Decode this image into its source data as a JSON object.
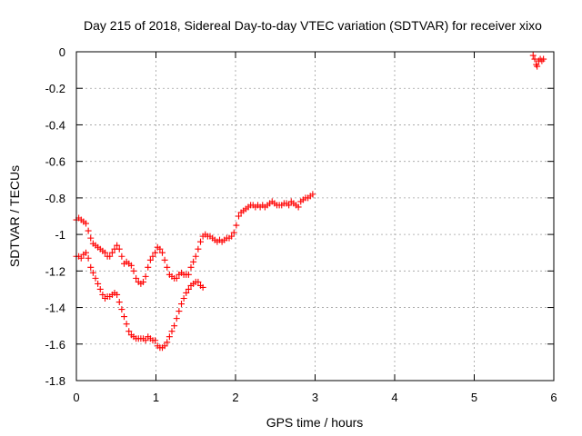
{
  "chart_data": {
    "type": "scatter",
    "title": "Day 215 of 2018, Sidereal Day-to-day VTEC variation (SDTVAR) for receiver xixo",
    "xlabel": "GPS time / hours",
    "ylabel": "SDTVAR / TECUs",
    "xlim": [
      0,
      6
    ],
    "ylim": [
      -1.8,
      0
    ],
    "xticks": [
      "0",
      "1",
      "2",
      "3",
      "4",
      "5",
      "6"
    ],
    "yticks": [
      "0",
      "-0.2",
      "-0.4",
      "-0.6",
      "-0.8",
      "-1",
      "-1.2",
      "-1.4",
      "-1.6",
      "-1.8"
    ],
    "grid": true,
    "marker": "+",
    "color": "#ff0000",
    "series": [
      {
        "values": [
          [
            0.0,
            -0.92
          ],
          [
            0.03,
            -0.91
          ],
          [
            0.06,
            -0.92
          ],
          [
            0.09,
            -0.93
          ],
          [
            0.12,
            -0.94
          ],
          [
            0.15,
            -0.98
          ],
          [
            0.18,
            -1.02
          ],
          [
            0.21,
            -1.05
          ],
          [
            0.24,
            -1.06
          ],
          [
            0.27,
            -1.07
          ],
          [
            0.3,
            -1.08
          ],
          [
            0.33,
            -1.09
          ],
          [
            0.36,
            -1.1
          ],
          [
            0.39,
            -1.12
          ],
          [
            0.42,
            -1.12
          ],
          [
            0.45,
            -1.1
          ],
          [
            0.48,
            -1.08
          ],
          [
            0.51,
            -1.06
          ],
          [
            0.54,
            -1.08
          ],
          [
            0.57,
            -1.12
          ],
          [
            0.6,
            -1.16
          ],
          [
            0.63,
            -1.15
          ],
          [
            0.66,
            -1.16
          ],
          [
            0.69,
            -1.17
          ],
          [
            0.72,
            -1.2
          ],
          [
            0.75,
            -1.24
          ],
          [
            0.78,
            -1.26
          ],
          [
            0.81,
            -1.27
          ],
          [
            0.84,
            -1.26
          ],
          [
            0.87,
            -1.23
          ],
          [
            0.9,
            -1.18
          ],
          [
            0.93,
            -1.14
          ],
          [
            0.96,
            -1.12
          ],
          [
            0.99,
            -1.1
          ],
          [
            1.02,
            -1.07
          ],
          [
            1.05,
            -1.08
          ],
          [
            1.08,
            -1.1
          ],
          [
            1.11,
            -1.14
          ],
          [
            1.14,
            -1.18
          ],
          [
            1.17,
            -1.22
          ],
          [
            1.2,
            -1.23
          ],
          [
            1.23,
            -1.24
          ],
          [
            1.26,
            -1.24
          ],
          [
            1.29,
            -1.22
          ],
          [
            1.32,
            -1.21
          ],
          [
            1.35,
            -1.22
          ],
          [
            1.38,
            -1.22
          ],
          [
            1.41,
            -1.22
          ],
          [
            1.44,
            -1.18
          ],
          [
            1.47,
            -1.15
          ],
          [
            1.5,
            -1.12
          ],
          [
            1.53,
            -1.08
          ],
          [
            1.56,
            -1.04
          ],
          [
            1.59,
            -1.01
          ],
          [
            1.62,
            -1.0
          ],
          [
            1.65,
            -1.01
          ],
          [
            1.68,
            -1.01
          ],
          [
            1.71,
            -1.02
          ],
          [
            1.74,
            -1.03
          ],
          [
            1.77,
            -1.04
          ],
          [
            1.8,
            -1.03
          ],
          [
            1.83,
            -1.04
          ],
          [
            1.86,
            -1.03
          ],
          [
            1.89,
            -1.02
          ],
          [
            1.92,
            -1.02
          ],
          [
            1.95,
            -1.01
          ],
          [
            1.98,
            -0.99
          ],
          [
            2.01,
            -0.95
          ],
          [
            2.04,
            -0.9
          ],
          [
            2.07,
            -0.88
          ],
          [
            2.1,
            -0.87
          ],
          [
            2.13,
            -0.86
          ],
          [
            2.16,
            -0.85
          ],
          [
            2.19,
            -0.84
          ],
          [
            2.22,
            -0.84
          ],
          [
            2.25,
            -0.85
          ],
          [
            2.28,
            -0.84
          ],
          [
            2.31,
            -0.85
          ],
          [
            2.34,
            -0.84
          ],
          [
            2.37,
            -0.85
          ],
          [
            2.4,
            -0.84
          ],
          [
            2.43,
            -0.83
          ],
          [
            2.46,
            -0.82
          ],
          [
            2.49,
            -0.83
          ],
          [
            2.52,
            -0.84
          ],
          [
            2.55,
            -0.84
          ],
          [
            2.58,
            -0.84
          ],
          [
            2.61,
            -0.83
          ],
          [
            2.64,
            -0.83
          ],
          [
            2.67,
            -0.84
          ],
          [
            2.7,
            -0.82
          ],
          [
            2.73,
            -0.83
          ],
          [
            2.76,
            -0.84
          ],
          [
            2.79,
            -0.85
          ],
          [
            2.82,
            -0.82
          ],
          [
            2.85,
            -0.81
          ],
          [
            2.88,
            -0.8
          ],
          [
            2.91,
            -0.8
          ],
          [
            2.94,
            -0.79
          ],
          [
            2.97,
            -0.78
          ]
        ]
      },
      {
        "values": [
          [
            0.0,
            -1.12
          ],
          [
            0.03,
            -1.12
          ],
          [
            0.06,
            -1.13
          ],
          [
            0.09,
            -1.11
          ],
          [
            0.12,
            -1.1
          ],
          [
            0.15,
            -1.13
          ],
          [
            0.18,
            -1.18
          ],
          [
            0.21,
            -1.21
          ],
          [
            0.24,
            -1.24
          ],
          [
            0.27,
            -1.27
          ],
          [
            0.3,
            -1.3
          ],
          [
            0.33,
            -1.33
          ],
          [
            0.36,
            -1.35
          ],
          [
            0.39,
            -1.34
          ],
          [
            0.42,
            -1.34
          ],
          [
            0.45,
            -1.33
          ],
          [
            0.48,
            -1.32
          ],
          [
            0.51,
            -1.33
          ],
          [
            0.54,
            -1.37
          ],
          [
            0.57,
            -1.41
          ],
          [
            0.6,
            -1.45
          ],
          [
            0.63,
            -1.49
          ],
          [
            0.66,
            -1.53
          ],
          [
            0.69,
            -1.55
          ],
          [
            0.72,
            -1.56
          ],
          [
            0.75,
            -1.57
          ],
          [
            0.78,
            -1.57
          ],
          [
            0.81,
            -1.57
          ],
          [
            0.84,
            -1.57
          ],
          [
            0.87,
            -1.58
          ],
          [
            0.9,
            -1.56
          ],
          [
            0.93,
            -1.57
          ],
          [
            0.96,
            -1.58
          ],
          [
            0.99,
            -1.58
          ],
          [
            1.02,
            -1.61
          ],
          [
            1.05,
            -1.62
          ],
          [
            1.08,
            -1.62
          ],
          [
            1.11,
            -1.61
          ],
          [
            1.14,
            -1.59
          ],
          [
            1.17,
            -1.56
          ],
          [
            1.2,
            -1.53
          ],
          [
            1.23,
            -1.5
          ],
          [
            1.26,
            -1.46
          ],
          [
            1.29,
            -1.42
          ],
          [
            1.32,
            -1.38
          ],
          [
            1.35,
            -1.35
          ],
          [
            1.38,
            -1.32
          ],
          [
            1.41,
            -1.3
          ],
          [
            1.44,
            -1.28
          ],
          [
            1.47,
            -1.27
          ],
          [
            1.5,
            -1.26
          ],
          [
            1.53,
            -1.26
          ],
          [
            1.56,
            -1.28
          ],
          [
            1.59,
            -1.29
          ]
        ]
      },
      {
        "values": [
          [
            5.74,
            -0.02
          ],
          [
            5.76,
            -0.04
          ],
          [
            5.78,
            -0.07
          ],
          [
            5.79,
            -0.08
          ],
          [
            5.81,
            -0.05
          ],
          [
            5.83,
            -0.04
          ],
          [
            5.85,
            -0.05
          ],
          [
            5.87,
            -0.04
          ]
        ]
      }
    ]
  }
}
